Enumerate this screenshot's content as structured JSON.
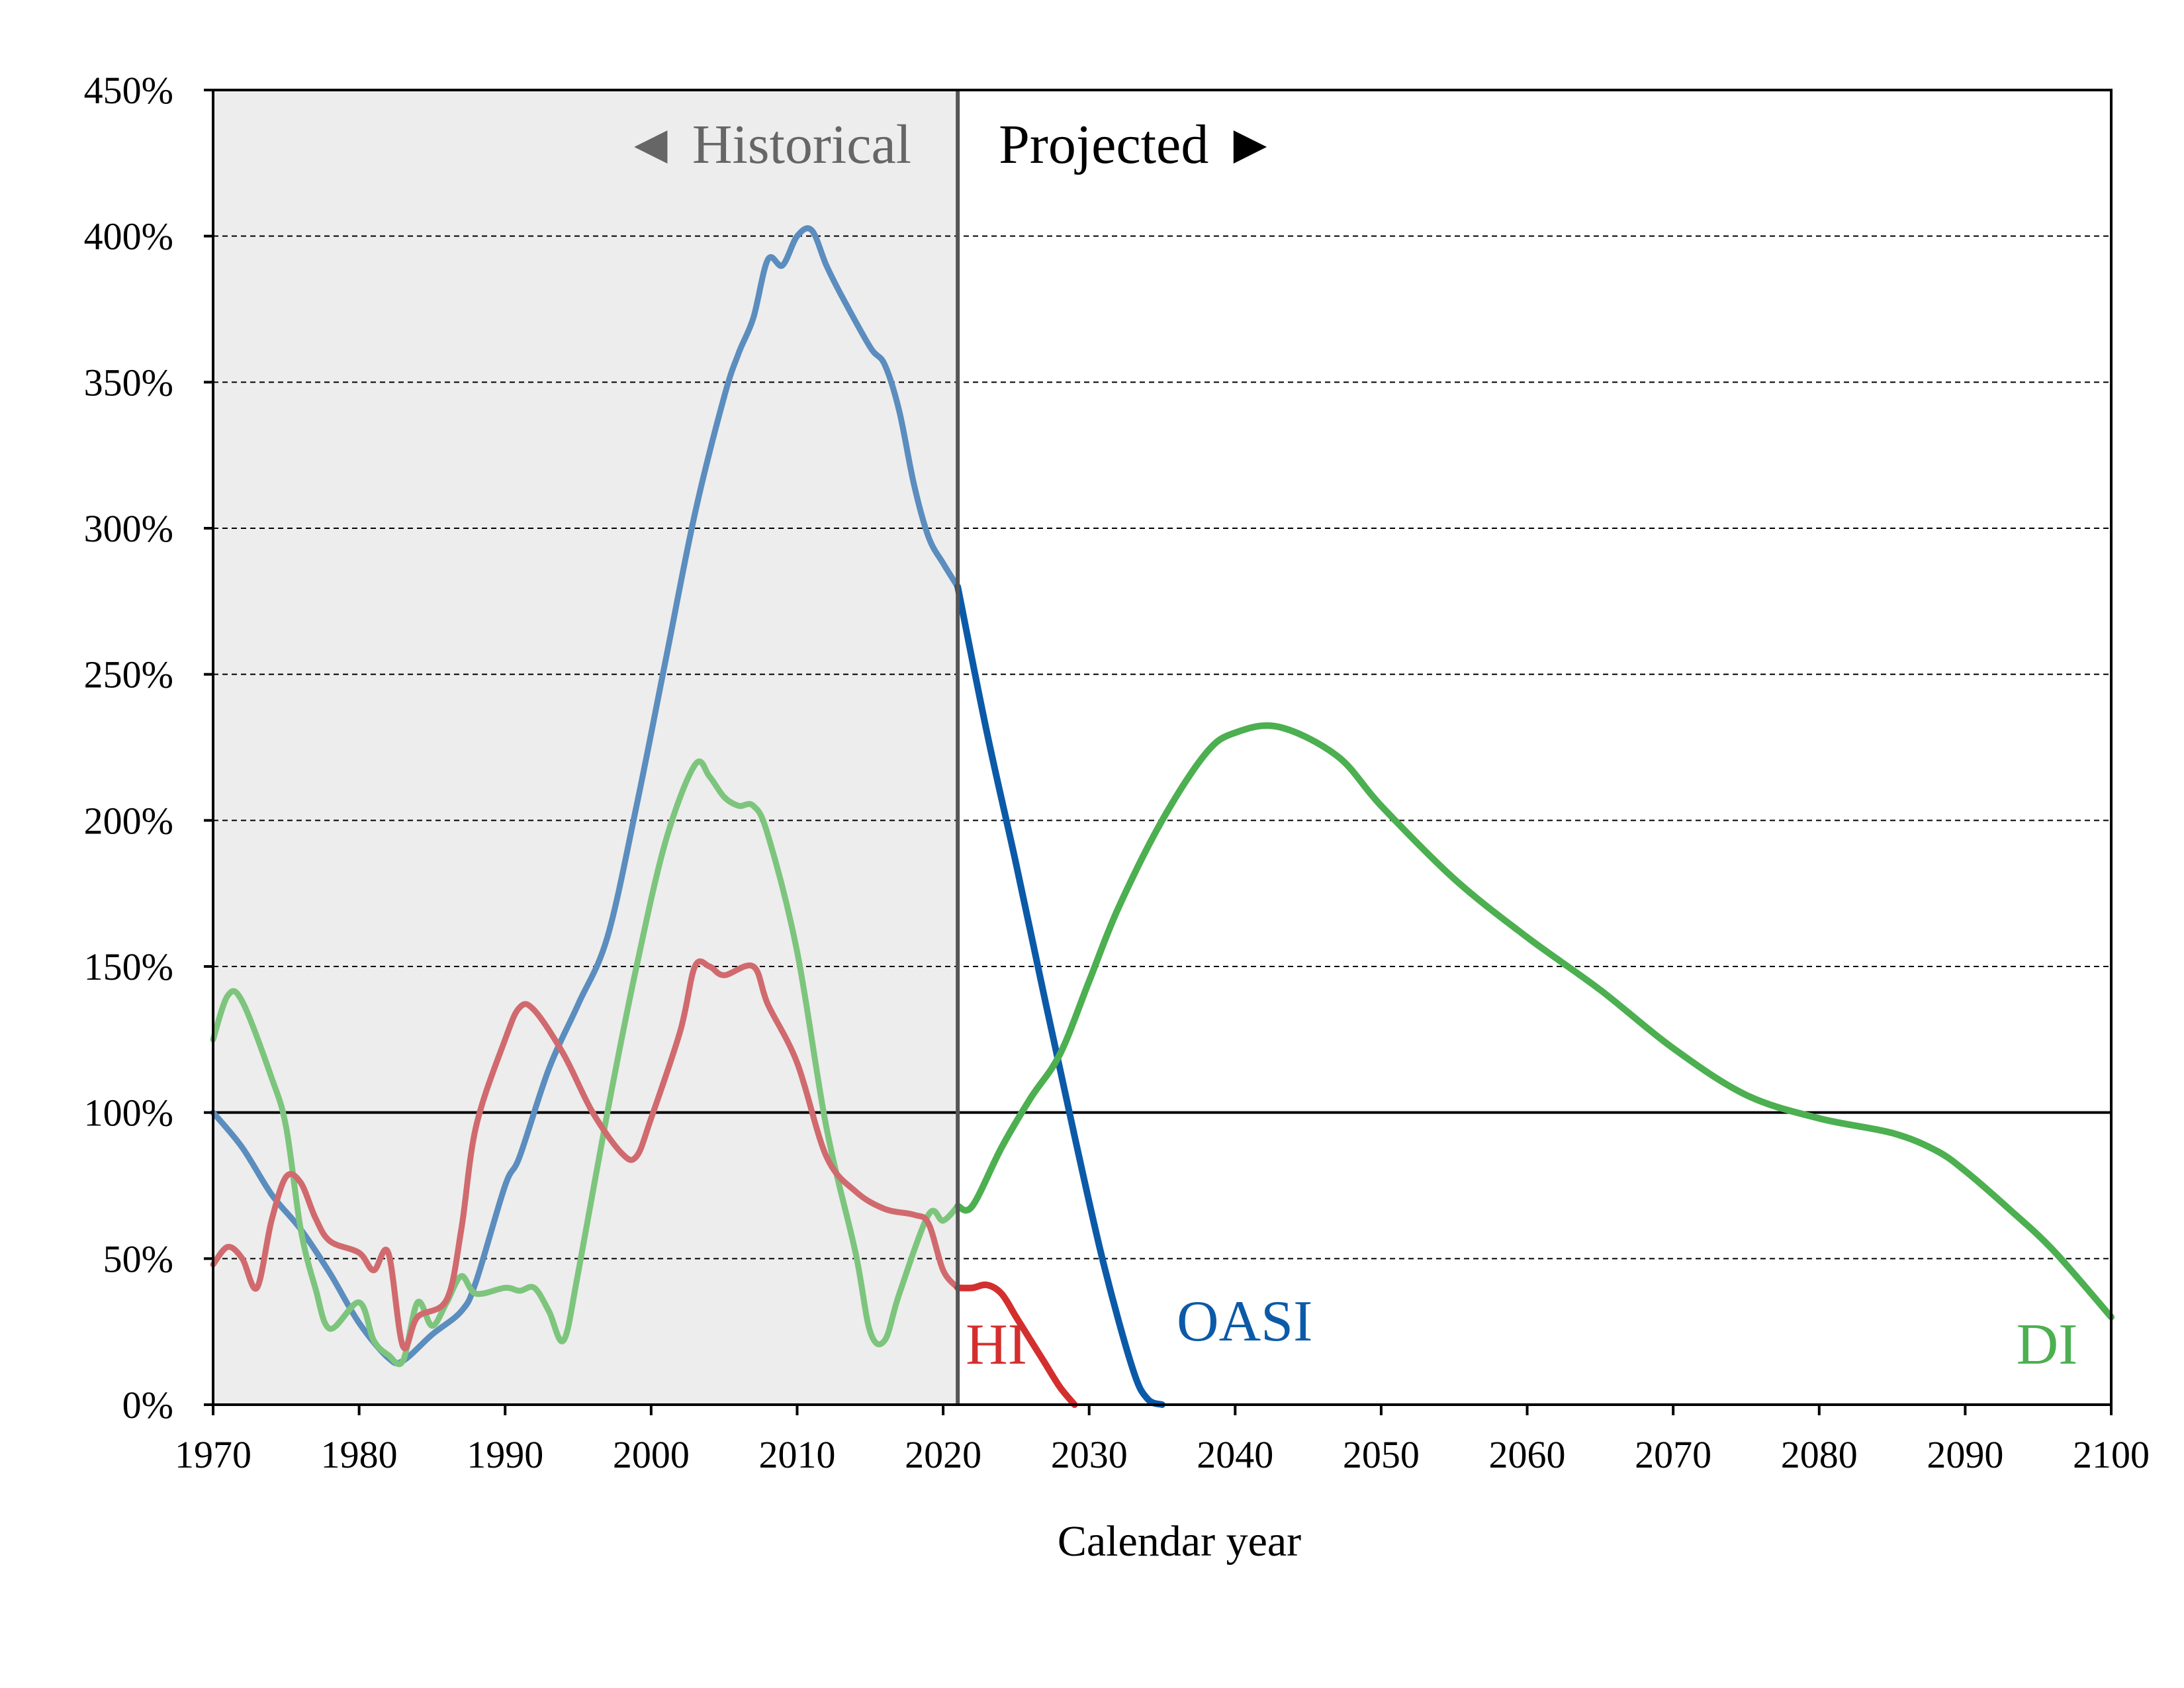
{
  "chart_data": {
    "type": "line",
    "xlabel": "Calendar year",
    "ylabel": "",
    "xlim": [
      1970,
      2100
    ],
    "ylim": [
      0,
      450
    ],
    "x_ticks": [
      "1970",
      "1980",
      "1990",
      "2000",
      "2010",
      "2020",
      "2030",
      "2040",
      "2050",
      "2060",
      "2070",
      "2080",
      "2090",
      "2100"
    ],
    "y_ticks": [
      "0%",
      "50%",
      "100%",
      "150%",
      "200%",
      "250%",
      "300%",
      "350%",
      "400%",
      "450%"
    ],
    "grid": "horizontal dashed",
    "reference_line": 100,
    "divider_year": 2021,
    "regions": {
      "historical": "◄ Historical",
      "projected": "Projected ►"
    },
    "series": [
      {
        "name": "OASI",
        "color_historical": "#5B8DBE",
        "color_projected": "#0B5AA8",
        "historical": [
          [
            1970,
            100
          ],
          [
            1972,
            88
          ],
          [
            1974,
            72
          ],
          [
            1976,
            60
          ],
          [
            1978,
            45
          ],
          [
            1980,
            28
          ],
          [
            1982,
            16
          ],
          [
            1983,
            15
          ],
          [
            1985,
            24
          ],
          [
            1987,
            32
          ],
          [
            1988,
            42
          ],
          [
            1990,
            75
          ],
          [
            1991,
            85
          ],
          [
            1993,
            115
          ],
          [
            1995,
            137
          ],
          [
            1997,
            160
          ],
          [
            1999,
            205
          ],
          [
            2001,
            255
          ],
          [
            2003,
            305
          ],
          [
            2005,
            345
          ],
          [
            2006,
            360
          ],
          [
            2007,
            372
          ],
          [
            2008,
            392
          ],
          [
            2009,
            390
          ],
          [
            2010,
            400
          ],
          [
            2011,
            402
          ],
          [
            2012,
            390
          ],
          [
            2013,
            380
          ],
          [
            2015,
            362
          ],
          [
            2016,
            356
          ],
          [
            2017,
            340
          ],
          [
            2018,
            315
          ],
          [
            2019,
            297
          ],
          [
            2020,
            288
          ],
          [
            2021,
            280
          ]
        ],
        "projected": [
          [
            2021,
            280
          ],
          [
            2023,
            230
          ],
          [
            2025,
            185
          ],
          [
            2027,
            138
          ],
          [
            2029,
            92
          ],
          [
            2031,
            48
          ],
          [
            2033,
            12
          ],
          [
            2034,
            2
          ],
          [
            2035,
            0
          ]
        ]
      },
      {
        "name": "DI",
        "color_historical": "#7DC57D",
        "color_projected": "#4CAF50",
        "historical": [
          [
            1970,
            125
          ],
          [
            1971,
            140
          ],
          [
            1972,
            138
          ],
          [
            1974,
            112
          ],
          [
            1975,
            95
          ],
          [
            1976,
            60
          ],
          [
            1977,
            40
          ],
          [
            1978,
            26
          ],
          [
            1980,
            35
          ],
          [
            1981,
            22
          ],
          [
            1982,
            17
          ],
          [
            1983,
            15
          ],
          [
            1984,
            35
          ],
          [
            1985,
            27
          ],
          [
            1986,
            35
          ],
          [
            1987,
            44
          ],
          [
            1988,
            38
          ],
          [
            1990,
            40
          ],
          [
            1991,
            39
          ],
          [
            1992,
            40
          ],
          [
            1993,
            32
          ],
          [
            1994,
            22
          ],
          [
            1995,
            45
          ],
          [
            1997,
            100
          ],
          [
            1999,
            150
          ],
          [
            2001,
            193
          ],
          [
            2003,
            219
          ],
          [
            2004,
            215
          ],
          [
            2005,
            208
          ],
          [
            2006,
            205
          ],
          [
            2007,
            205
          ],
          [
            2008,
            195
          ],
          [
            2010,
            155
          ],
          [
            2012,
            95
          ],
          [
            2014,
            52
          ],
          [
            2015,
            25
          ],
          [
            2016,
            22
          ],
          [
            2017,
            38
          ],
          [
            2019,
            65
          ],
          [
            2020,
            63
          ],
          [
            2021,
            68
          ]
        ],
        "projected": [
          [
            2021,
            68
          ],
          [
            2022,
            68
          ],
          [
            2024,
            88
          ],
          [
            2026,
            105
          ],
          [
            2028,
            120
          ],
          [
            2030,
            145
          ],
          [
            2032,
            170
          ],
          [
            2035,
            200
          ],
          [
            2038,
            223
          ],
          [
            2040,
            230
          ],
          [
            2043,
            232
          ],
          [
            2047,
            222
          ],
          [
            2050,
            205
          ],
          [
            2055,
            180
          ],
          [
            2060,
            160
          ],
          [
            2065,
            142
          ],
          [
            2070,
            122
          ],
          [
            2075,
            106
          ],
          [
            2080,
            98
          ],
          [
            2085,
            93
          ],
          [
            2088,
            87
          ],
          [
            2090,
            80
          ],
          [
            2093,
            67
          ],
          [
            2096,
            53
          ],
          [
            2100,
            30
          ]
        ]
      },
      {
        "name": "HI",
        "color_historical": "#D06A6E",
        "color_projected": "#D32F2F",
        "historical": [
          [
            1970,
            48
          ],
          [
            1971,
            54
          ],
          [
            1972,
            50
          ],
          [
            1973,
            40
          ],
          [
            1974,
            63
          ],
          [
            1975,
            78
          ],
          [
            1976,
            76
          ],
          [
            1977,
            64
          ],
          [
            1978,
            56
          ],
          [
            1980,
            52
          ],
          [
            1981,
            46
          ],
          [
            1982,
            52
          ],
          [
            1983,
            20
          ],
          [
            1984,
            30
          ],
          [
            1986,
            36
          ],
          [
            1987,
            60
          ],
          [
            1988,
            95
          ],
          [
            1990,
            125
          ],
          [
            1991,
            136
          ],
          [
            1992,
            135
          ],
          [
            1994,
            120
          ],
          [
            1996,
            100
          ],
          [
            1998,
            86
          ],
          [
            1999,
            85
          ],
          [
            2000,
            98
          ],
          [
            2002,
            128
          ],
          [
            2003,
            150
          ],
          [
            2004,
            150
          ],
          [
            2005,
            147
          ],
          [
            2007,
            150
          ],
          [
            2008,
            137
          ],
          [
            2010,
            117
          ],
          [
            2012,
            85
          ],
          [
            2014,
            73
          ],
          [
            2016,
            67
          ],
          [
            2018,
            65
          ],
          [
            2019,
            62
          ],
          [
            2020,
            46
          ],
          [
            2021,
            40
          ]
        ],
        "projected": [
          [
            2021,
            40
          ],
          [
            2022,
            40
          ],
          [
            2023,
            41
          ],
          [
            2024,
            38
          ],
          [
            2025,
            30
          ],
          [
            2026,
            22
          ],
          [
            2027,
            14
          ],
          [
            2028,
            6
          ],
          [
            2029,
            0
          ]
        ]
      }
    ]
  }
}
